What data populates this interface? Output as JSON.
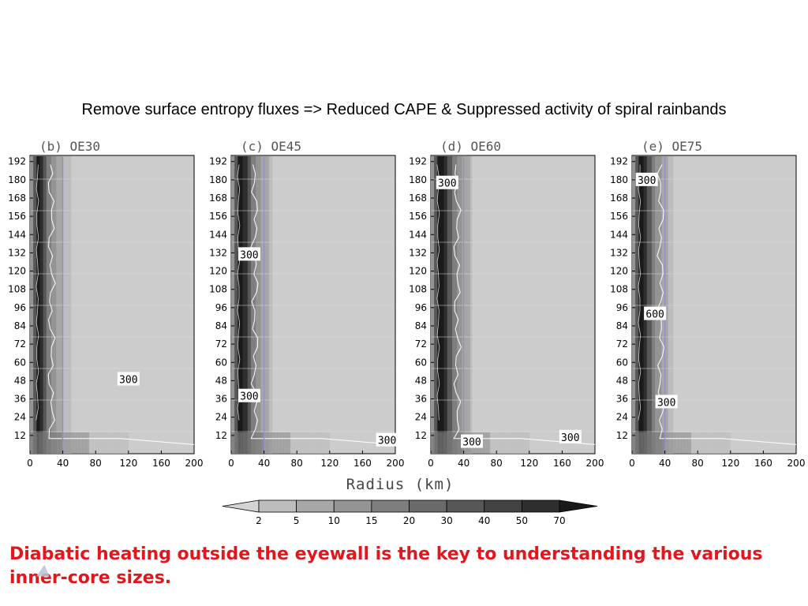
{
  "slide": {
    "title": "Remove surface entropy fluxes => Reduced CAPE & Suppressed activity of spiral rainbands",
    "conclusion": "Diabatic heating outside the eyewall is the key to understanding the various inner-core sizes."
  },
  "chart_data": {
    "type": "heatmap",
    "xlabel": "Radius (km)",
    "ylabel": "",
    "xlim": [
      0,
      200
    ],
    "ylim": [
      0,
      196
    ],
    "x_ticks": [
      0,
      40,
      80,
      120,
      160,
      200
    ],
    "y_ticks": [
      12,
      24,
      36,
      48,
      60,
      72,
      84,
      96,
      108,
      120,
      132,
      144,
      156,
      168,
      180,
      192
    ],
    "reference_line_x": 40,
    "colors": {
      "background": "#cccccc",
      "reference_line": "#8f8fcc",
      "contour": "#ffffff",
      "conclusion_text": "#e4161b"
    },
    "colorbar": {
      "levels": [
        2,
        5,
        10,
        15,
        20,
        30,
        40,
        50,
        70
      ],
      "colors": [
        "#d4d4d4",
        "#bdbdbd",
        "#a7a7a7",
        "#949494",
        "#7e7e7e",
        "#6a6a6a",
        "#575757",
        "#434343",
        "#2e2e2e",
        "#1a1a1a"
      ]
    },
    "panels": [
      {
        "label": "(b) OE30",
        "contour_labels": [
          {
            "text": "300",
            "x": 120,
            "y": 49
          }
        ]
      },
      {
        "label": "(c) OE45",
        "contour_labels": [
          {
            "text": "300",
            "x": 22,
            "y": 131
          },
          {
            "text": "300",
            "x": 22,
            "y": 38
          },
          {
            "text": "300",
            "x": 190,
            "y": 9
          }
        ]
      },
      {
        "label": "(d) OE60",
        "contour_labels": [
          {
            "text": "300",
            "x": 20,
            "y": 178
          },
          {
            "text": "300",
            "x": 50,
            "y": 8
          },
          {
            "text": "300",
            "x": 170,
            "y": 11
          }
        ]
      },
      {
        "label": "(e) OE75",
        "contour_labels": [
          {
            "text": "300",
            "x": 18,
            "y": 180
          },
          {
            "text": "600",
            "x": 28,
            "y": 92
          },
          {
            "text": "300",
            "x": 42,
            "y": 34
          }
        ]
      }
    ]
  }
}
